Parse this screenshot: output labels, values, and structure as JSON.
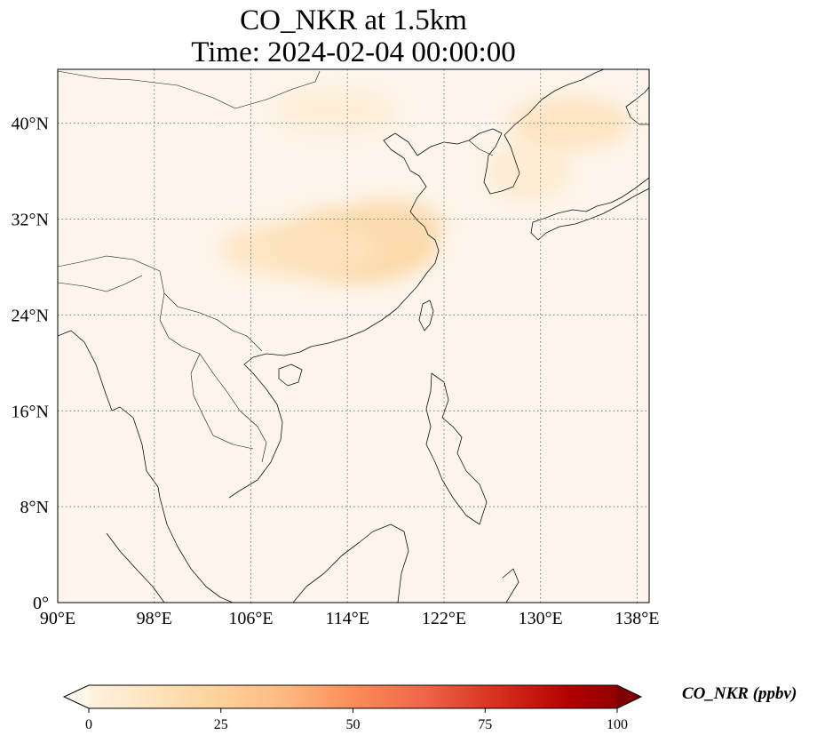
{
  "title": "CO_NKR at 1.5km",
  "subtitle": "Time: 2024-02-04 00:00:00",
  "map": {
    "lon_range": [
      90,
      139
    ],
    "lat_range": [
      0,
      44.5
    ],
    "lon_ticks": [
      {
        "value": 90,
        "label": "90°E"
      },
      {
        "value": 98,
        "label": "98°E"
      },
      {
        "value": 106,
        "label": "106°E"
      },
      {
        "value": 114,
        "label": "114°E"
      },
      {
        "value": 122,
        "label": "122°E"
      },
      {
        "value": 130,
        "label": "130°E"
      },
      {
        "value": 138,
        "label": "138°E"
      }
    ],
    "lat_ticks": [
      {
        "value": 0,
        "label": "0°"
      },
      {
        "value": 8,
        "label": "8°N"
      },
      {
        "value": 16,
        "label": "16°N"
      },
      {
        "value": 24,
        "label": "24°N"
      },
      {
        "value": 32,
        "label": "32°N"
      },
      {
        "value": 40,
        "label": "40°N"
      }
    ],
    "gridlines": true,
    "background_color": "#fdf5eb",
    "plumes": [
      {
        "lon": 114.5,
        "lat": 29.8,
        "rlon": 7,
        "rlat": 3.2,
        "value": 24
      },
      {
        "lon": 117.5,
        "lat": 31.5,
        "rlon": 4.5,
        "rlat": 2.2,
        "value": 20
      },
      {
        "lon": 110,
        "lat": 29.5,
        "rlon": 6.5,
        "rlat": 2.4,
        "value": 15
      },
      {
        "lon": 132.5,
        "lat": 40,
        "rlon": 5,
        "rlat": 2.2,
        "value": 16
      },
      {
        "lon": 129,
        "lat": 36,
        "rlon": 3.5,
        "rlat": 2.5,
        "value": 10
      },
      {
        "lon": 113,
        "lat": 41,
        "rlon": 5,
        "rlat": 2,
        "value": 8
      }
    ]
  },
  "colorbar": {
    "label": "CO_NKR (ppbv)",
    "min": 0,
    "max": 100,
    "extend": "both",
    "cmap": "OrRd",
    "ticks": [
      {
        "value": 0,
        "label": "0"
      },
      {
        "value": 25,
        "label": "25"
      },
      {
        "value": 50,
        "label": "50"
      },
      {
        "value": 75,
        "label": "75"
      },
      {
        "value": 100,
        "label": "100"
      }
    ],
    "colors": [
      "#fff7ec",
      "#fee8c8",
      "#fdd49e",
      "#fdbb84",
      "#fc8d59",
      "#ef6548",
      "#d7301f",
      "#b30000",
      "#7f0000"
    ]
  }
}
